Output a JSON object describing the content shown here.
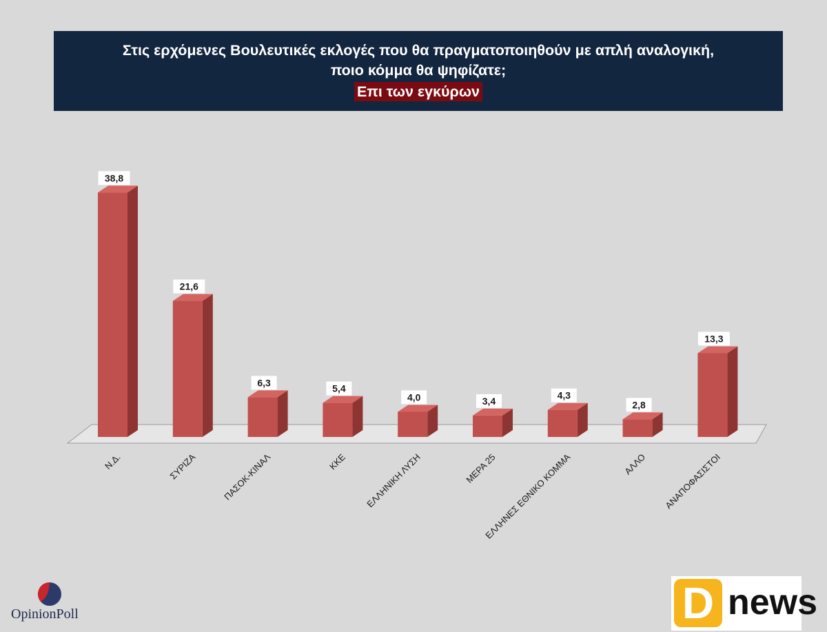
{
  "header": {
    "title_line1": "Στις ερχόμενες Βουλευτικές εκλογές που θα πραγματοποιηθούν με απλή αναλογική,",
    "title_line2": "ποιο κόμμα θα ψηφίζατε;",
    "subtitle": "Επι των εγκύρων"
  },
  "chart_data": {
    "type": "bar",
    "title": "Στις ερχόμενες Βουλευτικές εκλογές που θα πραγματοποιηθούν με απλή αναλογική, ποιο κόμμα θα ψηφίζατε;",
    "subtitle": "Επι των εγκύρων",
    "categories": [
      "Ν.Δ.",
      "ΣΥΡΙΖΑ",
      "ΠΑΣΟΚ-ΚΙΝΑΛ",
      "ΚΚΕ",
      "ΕΛΛΗΝΙΚΗ ΛΥΣΗ",
      "ΜΕΡΑ 25",
      "ΕΛΛΗΝΕΣ ΕΘΝΙΚΟ ΚΟΜΜΑ",
      "ΑΛΛΟ",
      "ΑΝΑΠΟΦΑΣΙΣΤΟΙ"
    ],
    "values": [
      38.8,
      21.6,
      6.3,
      5.4,
      4.0,
      3.4,
      4.3,
      2.8,
      13.3
    ],
    "value_labels": [
      "38,8",
      "21,6",
      "6,3",
      "5,4",
      "4,0",
      "3,4",
      "4,3",
      "2,8",
      "13,3"
    ],
    "ylim": [
      0,
      40
    ],
    "bar_color": "#c0504d",
    "bar_side_color": "#8e3533",
    "bar_top_color": "#d46461",
    "grid": false,
    "legend": "none"
  },
  "logos": {
    "opinionpoll": "OpinionPoll",
    "dnews_d": "D",
    "dnews_word": "news"
  }
}
